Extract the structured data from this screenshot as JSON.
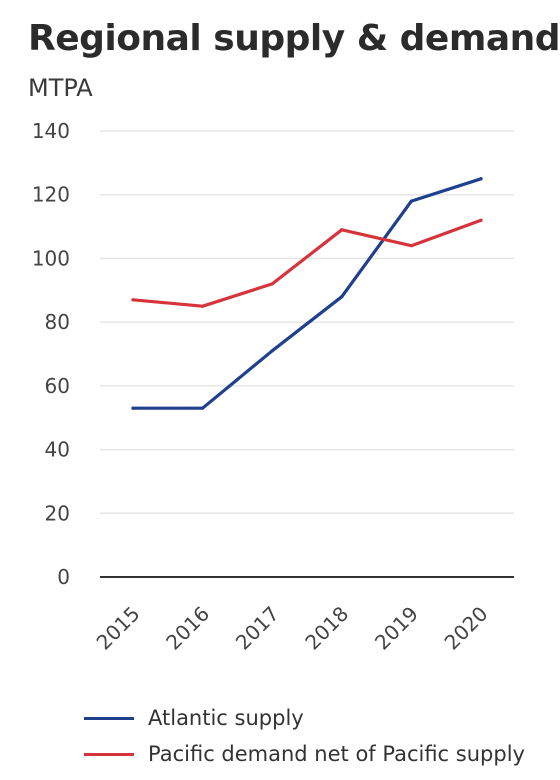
{
  "title": "Regional supply & demand",
  "unit": "MTPA",
  "colors": {
    "atlantic": "#1f3f8f",
    "pacific": "#d6333c",
    "grid": "#e6e6e6",
    "axis": "#333333"
  },
  "chart_data": {
    "type": "line",
    "title": "Regional supply & demand",
    "ylabel": "MTPA",
    "xlabel": "",
    "categories": [
      "2015",
      "2016",
      "2017",
      "2018",
      "2019",
      "2020"
    ],
    "ylim": [
      0,
      140
    ],
    "yticks": [
      0,
      20,
      40,
      60,
      80,
      100,
      120,
      140
    ],
    "grid": true,
    "legend_position": "bottom",
    "series": [
      {
        "name": "Atlantic supply",
        "color": "#1f3f8f",
        "values": [
          53,
          53,
          71,
          88,
          118,
          125
        ]
      },
      {
        "name": "Pacific demand net of Pacific supply",
        "color": "#d6333c",
        "values": [
          87,
          85,
          92,
          109,
          104,
          112
        ]
      }
    ]
  }
}
